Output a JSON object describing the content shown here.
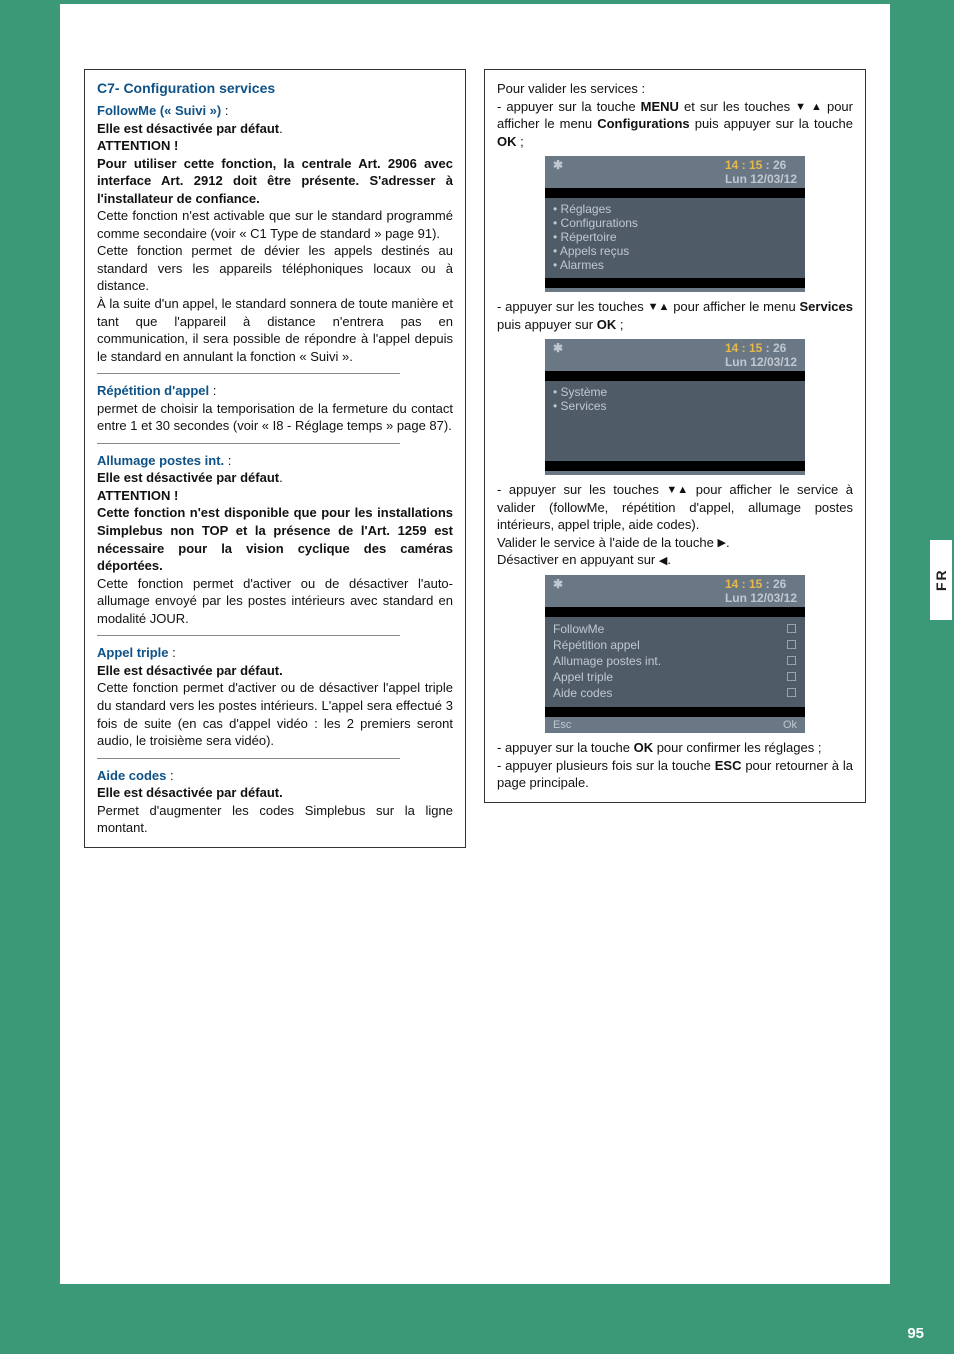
{
  "page_number": "95",
  "side_tab": "FR",
  "left": {
    "section_title": "C7- Configuration services",
    "followme": {
      "label": "FollowMe (« Suivi »)",
      "colon": " :",
      "line1": "Elle est désactivée par défaut",
      "attention": "ATTENTION !",
      "warn": "Pour utiliser cette fonction, la centrale Art. 2906 avec interface Art. 2912 doit être présente. S'adresser à l'installateur de confiance.",
      "p1": "Cette fonction n'est activable que sur le standard programmé comme secondaire (voir « C1 Type de standard » page 91).",
      "p2": "Cette fonction permet de dévier les appels destinés au standard vers les appareils téléphoniques locaux ou à distance.",
      "p3": "À la suite d'un appel, le standard sonnera de toute manière et tant que l'appareil à distance n'entrera pas en communication, il sera possible de répondre à l'appel depuis le standard en annulant la fonction « Suivi »."
    },
    "repetition": {
      "label": "Répétition d'appel",
      "colon": " :",
      "p1": "permet de choisir la temporisation de la fermeture du contact entre 1 et 30 secondes (voir « I8 - Réglage temps » page 87)."
    },
    "allumage": {
      "label": "Allumage postes int.",
      "colon": " :",
      "line1": "Elle est désactivée par défaut",
      "attention": "ATTENTION !",
      "warn": "Cette fonction n'est disponible que pour les installations Simplebus non TOP et la présence de l'Art. 1259 est nécessaire pour la vision cyclique des caméras déportées.",
      "p1": "Cette fonction permet d'activer ou de désactiver l'auto-allumage envoyé par les postes intérieurs avec standard en modalité JOUR."
    },
    "appel_triple": {
      "label": "Appel triple",
      "colon": " :",
      "line1": "Elle est désactivée par défaut.",
      "p1": "Cette fonction permet d'activer ou de désactiver l'appel triple du standard vers les postes intérieurs. L'appel sera effectué 3 fois de suite (en cas d'appel vidéo : les 2 premiers seront audio, le troisième sera vidéo)."
    },
    "aide_codes": {
      "label": "Aide codes",
      "colon": " :",
      "line1": "Elle est désactivée par défaut.",
      "p1": "Permet d'augmenter les codes Simplebus sur la ligne montant."
    }
  },
  "right": {
    "p1a": "Pour valider les services :",
    "p1b": "- appuyer sur la touche ",
    "menu": "MENU",
    "p1c": " et sur les touches ",
    "p1d": " pour afficher le menu ",
    "config": "Configurations",
    "p1e": " puis appuyer sur la touche ",
    "ok": "OK",
    "semicolon": " ;",
    "p2a": "- appuyer sur les touches ",
    "p2b": " pour afficher le menu ",
    "services_bold": "Services",
    "p2c": " puis appuyer sur ",
    "p3a": "- appuyer sur les touches ",
    "p3b": " pour afficher le service à valider (followMe, répétition d'appel, allumage postes intérieurs, appel triple, aide codes).",
    "p3c": "Valider le service à l'aide de la touche ",
    "p3d": "Désactiver en appuyant sur ",
    "p4a": "- appuyer sur la touche ",
    "p4b": " pour confirmer les réglages ;",
    "p4c": "- appuyer plusieurs fois sur la touche ",
    "esc": "ESC",
    "p4d": " pour retourner à la page principale.",
    "screens": {
      "time": "14 : 15",
      "sec": " : 26",
      "date": "Lun 12/03/12",
      "s1": [
        "• Réglages",
        "• Configurations",
        "• Répertoire",
        "• Appels reçus",
        "• Alarmes"
      ],
      "s2": [
        "• Système",
        "• Services"
      ],
      "s3": [
        "FollowMe",
        "Répétition appel",
        "Allumage postes int.",
        "Appel triple",
        "Aide codes"
      ],
      "esc": "Esc",
      "ok": "Ok",
      "box": "☐"
    }
  },
  "glyphs": {
    "down": "▼",
    "up": "▲",
    "right": "▶",
    "left": "◀",
    "dot": "."
  }
}
